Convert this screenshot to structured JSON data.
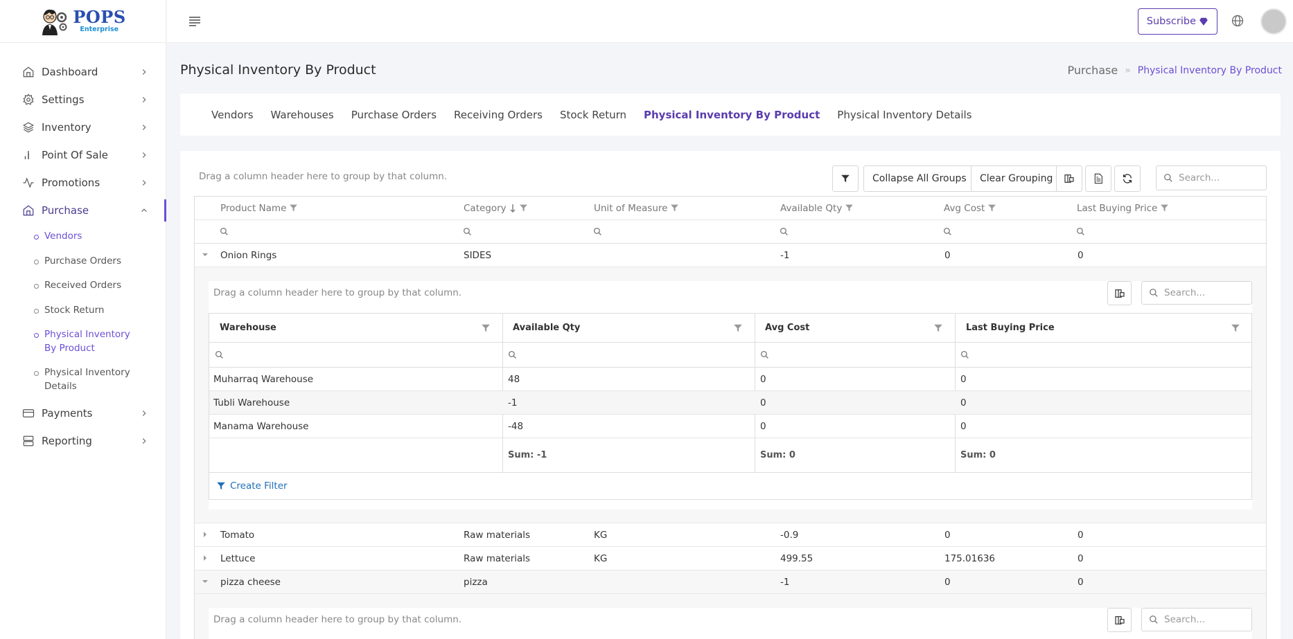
{
  "brand": {
    "name": "POPS",
    "sub": "Enterprise"
  },
  "sidebar": {
    "items": [
      {
        "label": "Dashboard",
        "icon": "home-icon"
      },
      {
        "label": "Settings",
        "icon": "gear-icon"
      },
      {
        "label": "Inventory",
        "icon": "layers-icon"
      },
      {
        "label": "Point Of Sale",
        "icon": "bar-chart-icon"
      },
      {
        "label": "Promotions",
        "icon": "activity-icon"
      },
      {
        "label": "Purchase",
        "icon": "home-icon"
      },
      {
        "label": "Payments",
        "icon": "credit-card-icon"
      },
      {
        "label": "Reporting",
        "icon": "server-icon"
      }
    ],
    "purchase_sub": [
      "Vendors",
      "Purchase Orders",
      "Received Orders",
      "Stock Return",
      "Physical Inventory By Product",
      "Physical Inventory Details"
    ]
  },
  "header": {
    "subscribe": "Subscribe"
  },
  "page": {
    "title": "Physical Inventory By Product"
  },
  "breadcrumb": {
    "root": "Purchase",
    "sep": "»",
    "current": "Physical Inventory By Product"
  },
  "tabs": [
    "Vendors",
    "Warehouses",
    "Purchase Orders",
    "Receiving Orders",
    "Stock Return",
    "Physical Inventory By Product",
    "Physical Inventory Details"
  ],
  "toolbar": {
    "group_hint": "Drag a column header here to group by that column.",
    "collapse": "Collapse All Groups",
    "clear": "Clear Grouping",
    "search_placeholder": "Search..."
  },
  "grid": {
    "columns": [
      "Product Name",
      "Category",
      "Unit of Measure",
      "Available Qty",
      "Avg Cost",
      "Last Buying Price"
    ],
    "rows": [
      {
        "name": "Onion Rings",
        "category": "SIDES",
        "uom": "",
        "qty": "-1",
        "avg": "0",
        "last": "0"
      },
      {
        "name": "Tomato",
        "category": "Raw materials",
        "uom": "KG",
        "qty": "-0.9",
        "avg": "0",
        "last": "0"
      },
      {
        "name": "Lettuce",
        "category": "Raw materials",
        "uom": "KG",
        "qty": "499.55",
        "avg": "175.01636",
        "last": "0"
      },
      {
        "name": "pizza cheese",
        "category": "pizza",
        "uom": "",
        "qty": "-1",
        "avg": "0",
        "last": "0"
      }
    ]
  },
  "detail": {
    "group_hint": "Drag a column header here to group by that column.",
    "search_placeholder": "Search...",
    "columns": [
      "Warehouse",
      "Available Qty",
      "Avg Cost",
      "Last Buying Price"
    ],
    "rows": [
      [
        "Muharraq Warehouse",
        "48",
        "0",
        "0"
      ],
      [
        "Tubli Warehouse",
        "-1",
        "0",
        "0"
      ],
      [
        "Manama Warehouse",
        "-48",
        "0",
        "0"
      ]
    ],
    "sums": [
      "Sum: -1",
      "Sum: 0",
      "Sum: 0"
    ],
    "create_filter": "Create Filter"
  }
}
